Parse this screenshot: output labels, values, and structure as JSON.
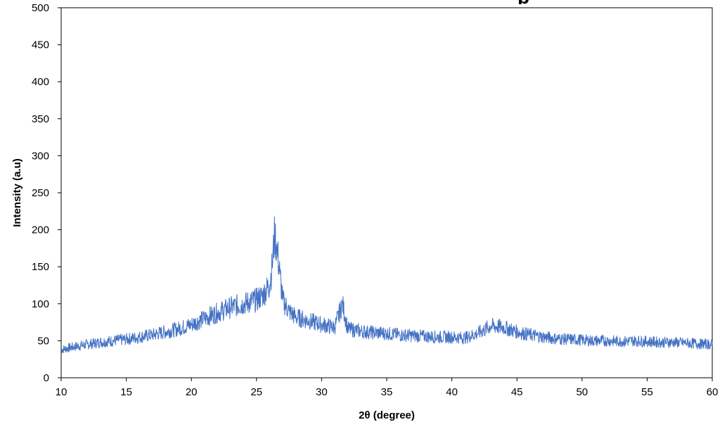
{
  "chart_data": {
    "type": "line",
    "title_fragment": "p",
    "xlabel": "2θ (degree)",
    "ylabel": "Intensity (a.u)",
    "xlim": [
      10,
      60
    ],
    "ylim": [
      0,
      500
    ],
    "x_ticks": [
      10,
      15,
      20,
      25,
      30,
      35,
      40,
      45,
      50,
      55,
      60
    ],
    "y_ticks": [
      0,
      50,
      100,
      150,
      200,
      250,
      300,
      350,
      400,
      450,
      500
    ],
    "grid": false,
    "legend": "none",
    "line_color": "#4472c4",
    "series": [
      {
        "x": [
          10,
          11,
          12,
          13,
          14,
          15,
          16,
          17,
          18,
          19,
          20,
          21,
          22,
          23,
          24,
          25,
          25.5,
          26,
          26.2,
          26.4,
          26.6,
          26.8,
          27,
          27.5,
          28,
          29,
          30,
          31,
          31.6,
          32,
          33,
          34,
          35,
          36,
          37,
          38,
          39,
          40,
          41,
          42,
          43,
          44,
          45,
          46,
          47,
          48,
          49,
          50,
          51,
          52,
          53,
          54,
          55,
          56,
          57,
          58,
          59,
          60
        ],
        "values": [
          38,
          42,
          45,
          48,
          50,
          52,
          55,
          58,
          62,
          66,
          72,
          80,
          88,
          95,
          100,
          105,
          112,
          125,
          150,
          195,
          170,
          140,
          105,
          90,
          82,
          77,
          72,
          68,
          100,
          66,
          63,
          61,
          60,
          58,
          57,
          56,
          55,
          55,
          54,
          60,
          70,
          68,
          62,
          58,
          55,
          53,
          52,
          51,
          50,
          50,
          49,
          50,
          49,
          48,
          48,
          47,
          46,
          45
        ]
      }
    ]
  }
}
